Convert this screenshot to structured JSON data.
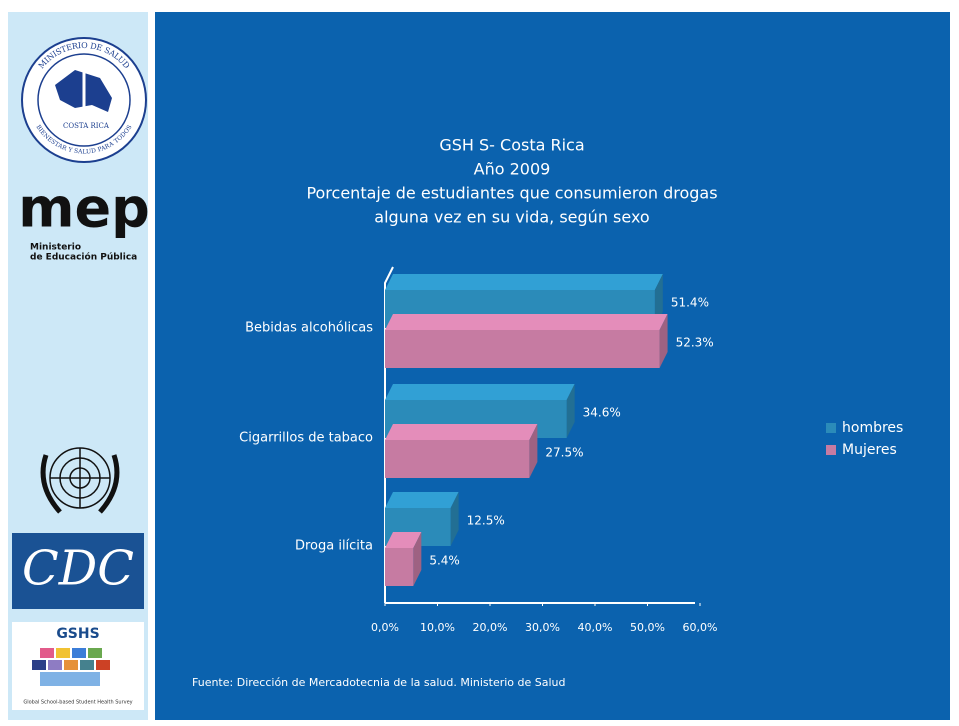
{
  "sidebar": {
    "salud_top": "MINISTERIO DE SALUD",
    "salud_country": "COSTA RICA",
    "salud_motto": "BIENESTAR Y SALUD PARA TODOS",
    "mep": "mep",
    "mep_line1": "Ministerio",
    "mep_line2": "de Educación Pública",
    "cdc": "CDC",
    "gshs": "GSHS",
    "gshs_caption": "Global School-based Student Health Survey"
  },
  "chart_data": {
    "type": "hbar3d",
    "title": [
      "GSH S- Costa Rica",
      "Año 2009",
      "Porcentaje de estudiantes que consumieron drogas",
      "alguna vez en su vida, según sexo"
    ],
    "categories": [
      "Bebidas alcohólicas",
      "Cigarrillos de tabaco",
      "Droga ilícita"
    ],
    "series": [
      {
        "name": "hombres",
        "color": "#2b8bb9",
        "values": [
          51.4,
          34.6,
          12.5
        ],
        "value_labels": [
          "51.4%",
          "34.6%",
          "12.5%"
        ]
      },
      {
        "name": "Mujeres",
        "color": "#c67ba2",
        "values": [
          52.3,
          27.5,
          5.4
        ],
        "value_labels": [
          "52.3%",
          "27.5%",
          "5.4%"
        ]
      }
    ],
    "xlim": [
      0,
      60
    ],
    "xticks": [
      {
        "value": 0,
        "label": "0,0%"
      },
      {
        "value": 10,
        "label": "10,0%"
      },
      {
        "value": 20,
        "label": "20,0%"
      },
      {
        "value": 30,
        "label": "30,0%"
      },
      {
        "value": 40,
        "label": "40,0%"
      },
      {
        "value": 50,
        "label": "50,0%"
      },
      {
        "value": 60,
        "label": "60,0%"
      }
    ],
    "legend": "right",
    "source": "Fuente: Dirección de Mercadotecnia de la salud. Ministerio de Salud"
  }
}
